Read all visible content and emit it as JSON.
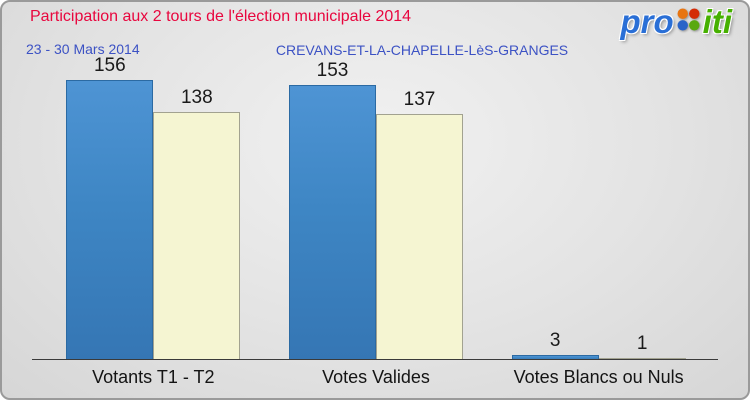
{
  "header": {
    "title": "Participation aux 2 tours de l'élection municipale 2014",
    "date_range": "23 - 30 Mars 2014",
    "commune": "CREVANS-ET-LA-CHAPELLE-LèS-GRANGES"
  },
  "logo": {
    "text": "proxiti",
    "pro": "pro",
    "iti": "iti"
  },
  "chart_data": {
    "type": "bar",
    "title": "Participation aux 2 tours de l'élection municipale 2014",
    "categories": [
      "Votants T1 - T2",
      "Votes Valides",
      "Votes Blancs ou Nuls"
    ],
    "series": [
      {
        "name": "blue",
        "color": "#3e86c4",
        "values": [
          156,
          153,
          3
        ]
      },
      {
        "name": "cream",
        "color": "#f5f5d2",
        "values": [
          138,
          137,
          1
        ]
      }
    ],
    "xlabel": "",
    "ylabel": "",
    "ylim": [
      0,
      160
    ],
    "grid": false,
    "legend": "none"
  },
  "colors": {
    "title_red": "#e8063e",
    "subtitle_blue": "#3c52c4",
    "bar_blue": "#3e86c4",
    "bar_cream": "#f5f5d2",
    "axis": "#3a3a3a",
    "logo_blue": "#2a6fd6",
    "logo_green": "#46b000"
  }
}
